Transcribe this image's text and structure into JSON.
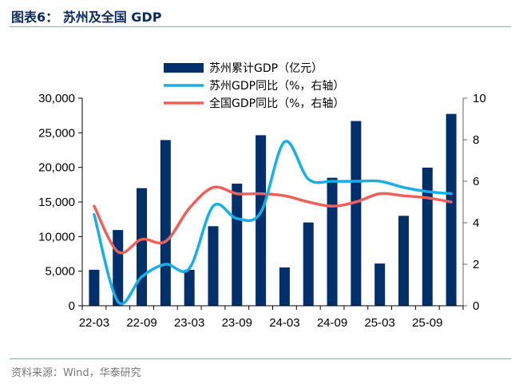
{
  "title": "图表6： 苏州及全国 GDP",
  "source": "资料来源：Wind，华泰研究",
  "chart_data": {
    "type": "bar+line",
    "categories": [
      "22-03",
      "22-06",
      "22-09",
      "22-12",
      "23-03",
      "23-06",
      "23-09",
      "23-12",
      "24-03",
      "24-06",
      "24-09",
      "24-12",
      "25-03",
      "25-06",
      "25-09",
      "25-12"
    ],
    "x_tick_labels": [
      "22-03",
      "22-09",
      "23-03",
      "23-09",
      "24-03",
      "24-09",
      "25-03",
      "25-09"
    ],
    "y_left": {
      "range": [
        0,
        30000
      ],
      "ticks": [
        "0",
        "5,000",
        "10,000",
        "15,000",
        "20,000",
        "25,000",
        "30,000"
      ]
    },
    "y_right": {
      "range": [
        0,
        10
      ],
      "ticks": [
        "0",
        "2",
        "4",
        "6",
        "8",
        "10"
      ]
    },
    "series": [
      {
        "name": "苏州累计GDP（亿元）",
        "type": "bar",
        "axis": "left",
        "color": "#002f6c",
        "values": [
          5200,
          10950,
          17000,
          23950,
          5200,
          11500,
          17650,
          24650,
          5540,
          12040,
          18500,
          26700,
          6100,
          13000,
          19960,
          27730
        ]
      },
      {
        "name": "苏州GDP同比（%，右轴）",
        "type": "line",
        "axis": "right",
        "color": "#1aaee6",
        "values": [
          4.4,
          0.2,
          1.4,
          2.0,
          1.8,
          4.8,
          4.2,
          4.5,
          7.9,
          6.1,
          6.0,
          6.0,
          6.0,
          5.7,
          5.5,
          5.4
        ]
      },
      {
        "name": "全国GDP同比（%，右轴）",
        "type": "line",
        "axis": "right",
        "color": "#f0605a",
        "values": [
          4.8,
          2.6,
          3.2,
          3.1,
          4.7,
          5.7,
          5.4,
          5.4,
          5.3,
          5.0,
          4.8,
          5.0,
          5.4,
          5.3,
          5.2,
          5.0
        ]
      }
    ],
    "legend": "top-center",
    "grid": false
  }
}
